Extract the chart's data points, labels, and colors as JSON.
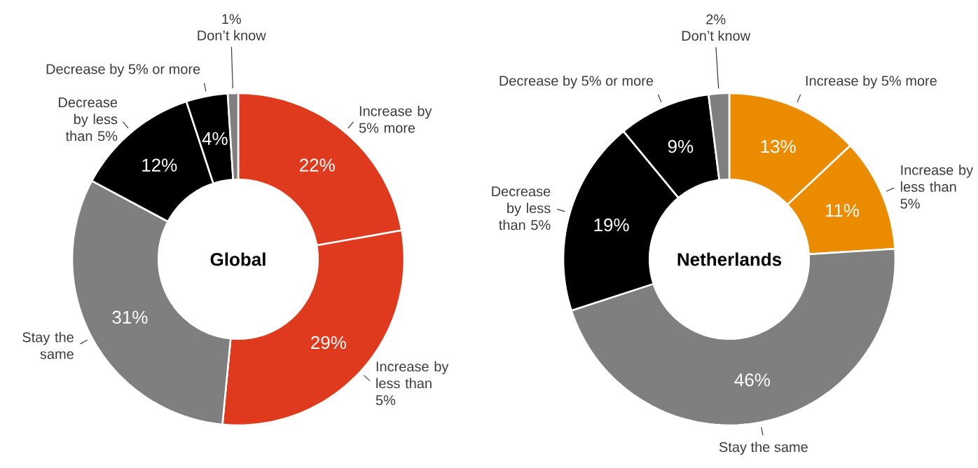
{
  "chart_data": [
    {
      "type": "donut",
      "title": "Global",
      "categories": [
        "Increase by 5% more",
        "Increase by less than 5%",
        "Stay the same",
        "Decrease by less than 5%",
        "Decrease by 5% or more",
        "Don’t know"
      ],
      "values": [
        22,
        29,
        31,
        12,
        4,
        1
      ],
      "value_labels": [
        "22%",
        "29%",
        "31%",
        "12%",
        "4%",
        "1%"
      ],
      "colors": [
        "#e03a1e",
        "#e03a1e",
        "#7f7f7f",
        "#000000",
        "#000000",
        "#7f7f7f"
      ]
    },
    {
      "type": "donut",
      "title": "Netherlands",
      "categories": [
        "Increase by 5% more",
        "Increase by less than 5%",
        "Stay the same",
        "Decrease by less than 5%",
        "Decrease by 5% or more",
        "Don’t know"
      ],
      "values": [
        13,
        11,
        46,
        19,
        9,
        2
      ],
      "value_labels": [
        "13%",
        "11%",
        "46%",
        "19%",
        "9%",
        "2%"
      ],
      "colors": [
        "#eb8c00",
        "#eb8c00",
        "#7f7f7f",
        "#000000",
        "#000000",
        "#7f7f7f"
      ]
    }
  ]
}
